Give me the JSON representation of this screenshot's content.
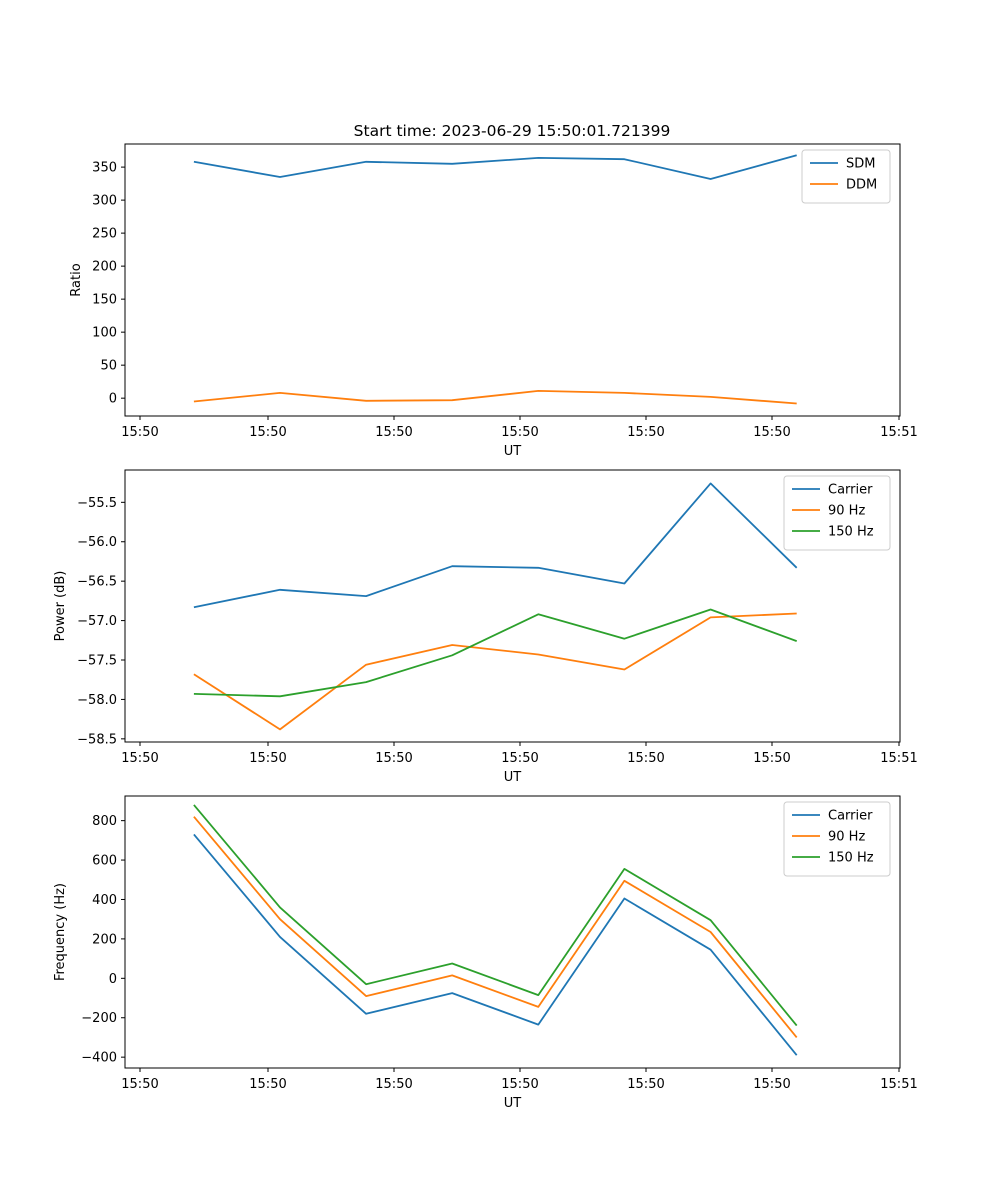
{
  "figure_title": "Start time: 2023-06-29 15:50:01.721399",
  "chart_data": [
    {
      "type": "line",
      "title": "Start time: 2023-06-29 15:50:01.721399",
      "xlabel": "UT",
      "ylabel": "Ratio",
      "x_tick_labels": [
        "15:50",
        "15:50",
        "15:50",
        "15:50",
        "15:50",
        "15:50",
        "15:51"
      ],
      "x": [
        1,
        2,
        3,
        4,
        5,
        6,
        7,
        8
      ],
      "xlim": [
        0.2,
        9.2
      ],
      "ylim": [
        -27,
        385
      ],
      "y_ticks": [
        0,
        50,
        100,
        150,
        200,
        250,
        300,
        350
      ],
      "y_tick_labels": [
        "0",
        "50",
        "100",
        "150",
        "200",
        "250",
        "300",
        "350"
      ],
      "legend_position": "top-right",
      "series": [
        {
          "name": "SDM",
          "color": "#1f77b4",
          "values": [
            358,
            335,
            358,
            355,
            364,
            362,
            332,
            368
          ]
        },
        {
          "name": "DDM",
          "color": "#ff7f0e",
          "values": [
            -5,
            8,
            -4,
            -3,
            11,
            8,
            2,
            -8
          ]
        }
      ]
    },
    {
      "type": "line",
      "xlabel": "UT",
      "ylabel": "Power (dB)",
      "x_tick_labels": [
        "15:50",
        "15:50",
        "15:50",
        "15:50",
        "15:50",
        "15:50",
        "15:51"
      ],
      "x": [
        1,
        2,
        3,
        4,
        5,
        6,
        7,
        8
      ],
      "xlim": [
        0.2,
        9.2
      ],
      "ylim": [
        -58.54,
        -55.09
      ],
      "y_ticks": [
        -58.5,
        -58.0,
        -57.5,
        -57.0,
        -56.5,
        -56.0,
        -55.5
      ],
      "y_tick_labels": [
        "−58.5",
        "−58.0",
        "−57.5",
        "−57.0",
        "−56.5",
        "−56.0",
        "−55.5"
      ],
      "legend_position": "top-right",
      "series": [
        {
          "name": "Carrier",
          "color": "#1f77b4",
          "values": [
            -56.83,
            -56.61,
            -56.69,
            -56.31,
            -56.33,
            -56.53,
            -55.26,
            -56.33
          ]
        },
        {
          "name": "90 Hz",
          "color": "#ff7f0e",
          "values": [
            -57.68,
            -58.38,
            -57.56,
            -57.31,
            -57.43,
            -57.62,
            -56.96,
            -56.91
          ]
        },
        {
          "name": "150 Hz",
          "color": "#2ca02c",
          "values": [
            -57.93,
            -57.96,
            -57.78,
            -57.44,
            -56.92,
            -57.23,
            -56.86,
            -57.26
          ]
        }
      ]
    },
    {
      "type": "line",
      "xlabel": "UT",
      "ylabel": "Frequency (Hz)",
      "x_tick_labels": [
        "15:50",
        "15:50",
        "15:50",
        "15:50",
        "15:50",
        "15:50",
        "15:51"
      ],
      "x": [
        1,
        2,
        3,
        4,
        5,
        6,
        7,
        8
      ],
      "xlim": [
        0.2,
        9.2
      ],
      "ylim": [
        -455,
        925
      ],
      "y_ticks": [
        -400,
        -200,
        0,
        200,
        400,
        600,
        800
      ],
      "y_tick_labels": [
        "−400",
        "−200",
        "0",
        "200",
        "400",
        "600",
        "800"
      ],
      "legend_position": "top-right",
      "series": [
        {
          "name": "Carrier",
          "color": "#1f77b4",
          "values": [
            730,
            210,
            -180,
            -75,
            -235,
            405,
            145,
            -390
          ]
        },
        {
          "name": "90 Hz",
          "color": "#ff7f0e",
          "values": [
            820,
            300,
            -90,
            15,
            -145,
            495,
            235,
            -300
          ]
        },
        {
          "name": "150 Hz",
          "color": "#2ca02c",
          "values": [
            880,
            360,
            -30,
            75,
            -85,
            555,
            295,
            -240
          ]
        }
      ]
    }
  ]
}
